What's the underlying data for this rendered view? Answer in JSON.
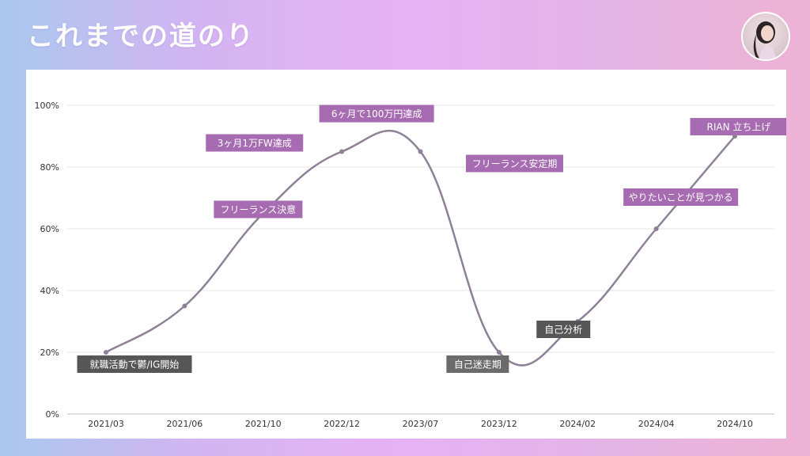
{
  "header": {
    "title": "これまでの道のり"
  },
  "chart_data": {
    "type": "line",
    "title": "",
    "xlabel": "",
    "ylabel": "",
    "categories": [
      "2021/03",
      "2021/06",
      "2021/10",
      "2022/12",
      "2023/07",
      "2023/12",
      "2024/02",
      "2024/04",
      "2024/10"
    ],
    "values": [
      20,
      35,
      65,
      85,
      85,
      20,
      30,
      60,
      90
    ],
    "ylim": [
      0,
      100
    ],
    "y_ticks": [
      "0%",
      "20%",
      "40%",
      "60%",
      "80%",
      "100%"
    ],
    "grid": true,
    "line_color": "#8e8096",
    "annotations": [
      {
        "text": "就職活動で鬱/IG開始",
        "category_index": 0,
        "style": "dark"
      },
      {
        "text": "フリーランス決意",
        "category_index": 1,
        "style": "purple"
      },
      {
        "text": "3ヶ月1万FW達成",
        "category_index": 2,
        "style": "purple"
      },
      {
        "text": "6ヶ月で100万円達成",
        "category_index": 3,
        "style": "purple"
      },
      {
        "text": "フリーランス安定期",
        "category_index": 4,
        "style": "purple"
      },
      {
        "text": "自己迷走期",
        "category_index": 5,
        "style": "grey"
      },
      {
        "text": "自己分析",
        "category_index": 6,
        "style": "dark"
      },
      {
        "text": "やりたいことが見つかる",
        "category_index": 7,
        "style": "purple"
      },
      {
        "text": "RIAN 立ち上げ",
        "category_index": 8,
        "style": "purple"
      }
    ],
    "colors": {
      "purple": "#a76bb2",
      "dark": "#565656",
      "grey": "#6b6b6b"
    }
  }
}
